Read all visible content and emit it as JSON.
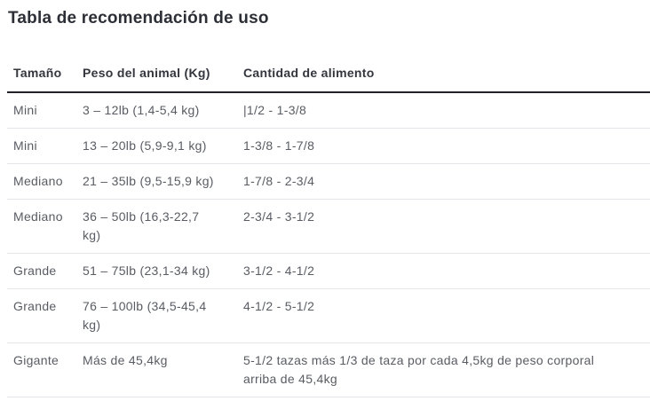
{
  "page": {
    "title": "Tabla de recomendación de uso"
  },
  "table": {
    "columns": [
      "Tamaño",
      "Peso del animal (Kg)",
      "Cantidad de alimento"
    ],
    "rows": [
      {
        "size": "Mini",
        "weight": "3 – 12lb (1,4-5,4 kg)",
        "amount": "|1/2 - 1-3/8"
      },
      {
        "size": "Mini",
        "weight": "13 – 20lb (5,9-9,1 kg)",
        "amount": "1-3/8 - 1-7/8"
      },
      {
        "size": "Mediano",
        "weight": "21 – 35lb (9,5-15,9 kg)",
        "amount": "1-7/8 - 2-3/4"
      },
      {
        "size": "Mediano",
        "weight": "36 – 50lb (16,3-22,7\nkg)",
        "amount": "2-3/4 - 3-1/2"
      },
      {
        "size": "Grande",
        "weight": "51 – 75lb (23,1-34 kg)",
        "amount": "3-1/2 - 4-1/2"
      },
      {
        "size": "Grande",
        "weight": "76 – 100lb (34,5-45,4\nkg)",
        "amount": "4-1/2 - 5-1/2"
      },
      {
        "size": "Gigante",
        "weight": "Más de 45,4kg",
        "amount": "5-1/2 tazas más 1/3 de taza por cada 4,5kg de peso corporal\narriba de 45,4kg"
      }
    ]
  },
  "colors": {
    "background": "#ffffff",
    "title_text": "#2c2f36",
    "header_text": "#33363d",
    "body_text": "#595c63",
    "header_rule": "#222329",
    "row_rule": "#e4e5e8"
  }
}
